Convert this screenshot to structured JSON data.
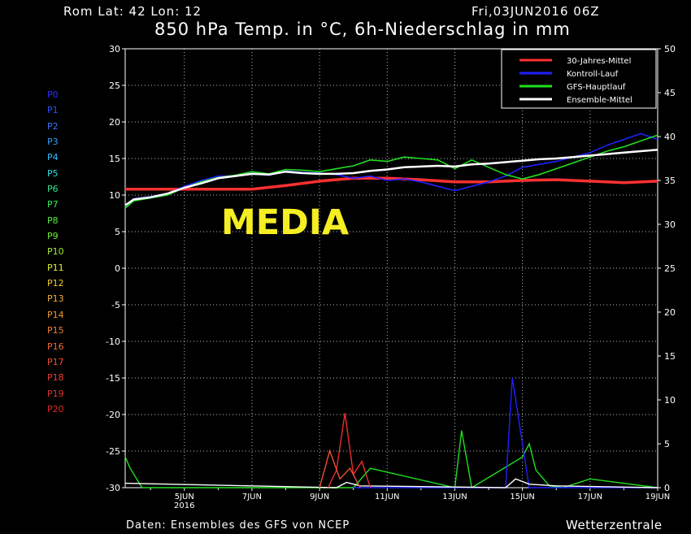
{
  "header": {
    "location": "Rom   Lat: 42  Lon: 12",
    "date": "Fri,03JUN2016  06Z",
    "title": "850 hPa Temp. in °C, 6h-Niederschlag in mm"
  },
  "footer": {
    "source": "Daten: Ensembles des GFS von NCEP",
    "brand": "Wetterzentrale"
  },
  "watermark": "MEDIA",
  "members": [
    {
      "label": "P0",
      "color": "#3030ff"
    },
    {
      "label": "P1",
      "color": "#3050ff"
    },
    {
      "label": "P2",
      "color": "#3878ff"
    },
    {
      "label": "P3",
      "color": "#30a0ff"
    },
    {
      "label": "P4",
      "color": "#30c0ff"
    },
    {
      "label": "P5",
      "color": "#30e0e0"
    },
    {
      "label": "P6",
      "color": "#30e890"
    },
    {
      "label": "P7",
      "color": "#30f060"
    },
    {
      "label": "P8",
      "color": "#50f040"
    },
    {
      "label": "P9",
      "color": "#70f030"
    },
    {
      "label": "P10",
      "color": "#a0f030"
    },
    {
      "label": "P11",
      "color": "#e0f030"
    },
    {
      "label": "P12",
      "color": "#f0d030"
    },
    {
      "label": "P13",
      "color": "#f0b030"
    },
    {
      "label": "P14",
      "color": "#f09a30"
    },
    {
      "label": "P15",
      "color": "#f08030"
    },
    {
      "label": "P16",
      "color": "#f06a30"
    },
    {
      "label": "P17",
      "color": "#f05030"
    },
    {
      "label": "P18",
      "color": "#f03c30"
    },
    {
      "label": "P19",
      "color": "#e83030"
    },
    {
      "label": "P20",
      "color": "#e02828"
    }
  ],
  "chart_data": {
    "type": "line",
    "title": "850 hPa Temp. in °C, 6h-Niederschlag in mm",
    "y_left": {
      "min": -30,
      "max": 30,
      "ticks": [
        30,
        25,
        20,
        15,
        10,
        5,
        0,
        -5,
        -10,
        -15,
        -20,
        -25,
        -30
      ]
    },
    "y_right": {
      "min": 0,
      "max": 50,
      "ticks": [
        50,
        45,
        40,
        35,
        30,
        25,
        20,
        15,
        10,
        5,
        0
      ]
    },
    "x_ticks": [
      {
        "day": 5,
        "label": "5JUN",
        "sub": "2016"
      },
      {
        "day": 7,
        "label": "7JUN",
        "sub": ""
      },
      {
        "day": 9,
        "label": "9JUN",
        "sub": ""
      },
      {
        "day": 11,
        "label": "11JUN",
        "sub": ""
      },
      {
        "day": 13,
        "label": "13JUN",
        "sub": ""
      },
      {
        "day": 15,
        "label": "15JUN",
        "sub": ""
      },
      {
        "day": 17,
        "label": "17JUN",
        "sub": ""
      },
      {
        "day": 19,
        "label": "19JUN",
        "sub": ""
      }
    ],
    "x_range": [
      "03JUN2016 06Z",
      "19JUN2016 00Z"
    ],
    "grid": true,
    "legend_position": "top-right",
    "legend": [
      {
        "name": "30-Jahres-Mittel",
        "color": "#ff3030"
      },
      {
        "name": "Kontroll-Lauf",
        "color": "#2020ff"
      },
      {
        "name": "GFS-Hauptlauf",
        "color": "#20e020"
      },
      {
        "name": "Ensemble-Mittel",
        "color": "#ffffff"
      }
    ],
    "temperature_series": [
      {
        "name": "30-Jahres-Mittel",
        "x": [
          3.25,
          4.5,
          6,
          7,
          8,
          9,
          10,
          11,
          12,
          13,
          14,
          15,
          16,
          17,
          18,
          19
        ],
        "y": [
          10.8,
          10.8,
          10.8,
          10.8,
          11.3,
          11.9,
          12.3,
          12.3,
          12.1,
          11.8,
          11.8,
          12.0,
          12.1,
          11.9,
          11.7,
          11.9
        ]
      },
      {
        "name": "Kontroll-Lauf",
        "x": [
          3.25,
          3.5,
          4,
          4.5,
          5,
          5.5,
          6,
          6.5,
          7,
          7.5,
          8,
          8.5,
          9,
          9.5,
          10,
          10.5,
          11,
          11.5,
          12,
          12.5,
          13,
          13.5,
          14,
          14.5,
          15,
          15.5,
          16,
          16.5,
          17,
          17.5,
          18,
          18.5,
          19
        ],
        "y": [
          8.5,
          9.5,
          9.8,
          10.2,
          11.2,
          12.0,
          12.6,
          12.6,
          13.0,
          12.7,
          13.3,
          13.1,
          13.0,
          12.8,
          12.3,
          12.6,
          12.0,
          12.2,
          11.8,
          11.2,
          10.6,
          11.2,
          11.8,
          12.6,
          13.8,
          14.2,
          14.6,
          15.2,
          15.8,
          16.8,
          17.6,
          18.4,
          17.6
        ]
      },
      {
        "name": "GFS-Hauptlauf",
        "x": [
          3.25,
          3.5,
          4,
          4.5,
          5,
          5.5,
          6,
          6.5,
          7,
          7.5,
          8,
          8.5,
          9,
          9.5,
          10,
          10.5,
          11,
          11.5,
          12,
          12.5,
          13,
          13.5,
          14,
          14.5,
          15,
          15.5,
          16,
          16.5,
          17,
          17.5,
          18,
          18.5,
          19
        ],
        "y": [
          8.2,
          9.2,
          9.6,
          10.0,
          11.0,
          11.8,
          12.4,
          12.7,
          13.2,
          12.9,
          13.5,
          13.4,
          13.2,
          13.6,
          14.0,
          14.8,
          14.6,
          15.2,
          15.0,
          14.8,
          13.6,
          14.8,
          13.8,
          12.8,
          12.2,
          12.8,
          13.6,
          14.4,
          15.2,
          16.0,
          16.6,
          17.4,
          18.2
        ]
      },
      {
        "name": "Ensemble-Mittel",
        "x": [
          3.25,
          3.5,
          4,
          4.5,
          5,
          5.5,
          6,
          6.5,
          7,
          7.5,
          8,
          8.5,
          9,
          9.5,
          10,
          10.5,
          11,
          11.5,
          12,
          12.5,
          13,
          13.5,
          14,
          14.5,
          15,
          15.5,
          16,
          16.5,
          17,
          17.5,
          18,
          18.5,
          19
        ],
        "y": [
          8.6,
          9.4,
          9.7,
          10.2,
          11.0,
          11.6,
          12.3,
          12.6,
          12.9,
          12.8,
          13.2,
          13.0,
          12.9,
          12.9,
          13.0,
          13.3,
          13.5,
          13.8,
          13.9,
          14.0,
          13.9,
          14.2,
          14.3,
          14.5,
          14.7,
          14.9,
          15.0,
          15.2,
          15.4,
          15.6,
          15.8,
          16.0,
          16.2
        ]
      }
    ],
    "precipitation_right_axis_mm": [
      {
        "name": "GFS-Hauptlauf",
        "x": [
          3.25,
          3.4,
          3.75,
          10.0,
          10.5,
          13.0,
          13.2,
          13.5,
          15.0,
          15.2,
          15.4,
          15.8,
          16.2,
          17.0,
          19.0
        ],
        "y": [
          3.5,
          2.2,
          0,
          0,
          2.2,
          0,
          6.5,
          0,
          3.5,
          5.0,
          2.0,
          0.2,
          0,
          1.0,
          0
        ]
      },
      {
        "name": "Kontroll-Lauf",
        "x": [
          10.0,
          14.5,
          14.7,
          14.9,
          15.2,
          19.0
        ],
        "y": [
          0,
          0,
          12.5,
          7.5,
          0,
          0
        ]
      },
      {
        "name": "Ensemble-Mittel",
        "x": [
          3.25,
          9.5,
          9.8,
          10.2,
          14.5,
          14.8,
          15.2,
          16.0,
          19.0
        ],
        "y": [
          0.5,
          0,
          0.6,
          0.2,
          0,
          1.0,
          0.4,
          0.2,
          0
        ]
      },
      {
        "name": "P19",
        "x": [
          9.25,
          9.5,
          9.75,
          10.0,
          10.25,
          10.5
        ],
        "y": [
          0,
          2.0,
          8.5,
          1.5,
          3.0,
          0
        ]
      },
      {
        "name": "P17",
        "x": [
          9.0,
          9.3,
          9.6,
          9.9,
          10.2
        ],
        "y": [
          0,
          4.2,
          1.0,
          2.2,
          0
        ]
      }
    ]
  }
}
